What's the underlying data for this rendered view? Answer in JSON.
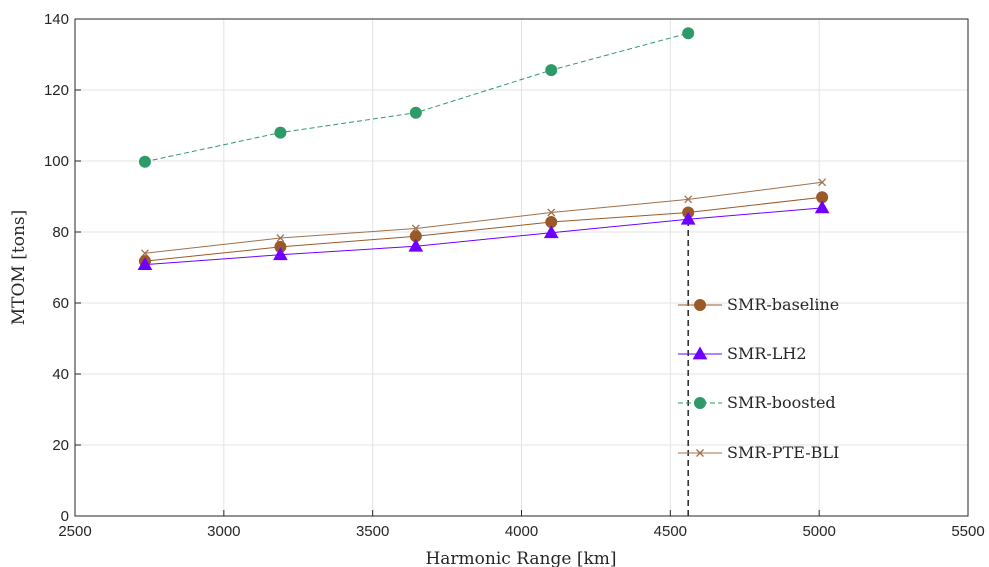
{
  "chart_data": {
    "type": "line",
    "title": "",
    "xlabel": "Harmonic Range [km]",
    "ylabel": "MTOM [tons]",
    "xlim": [
      2500,
      5500
    ],
    "ylim": [
      0,
      140
    ],
    "xticks": [
      2500,
      3000,
      3500,
      4000,
      4500,
      5000,
      5500
    ],
    "yticks": [
      0,
      20,
      40,
      60,
      80,
      100,
      120,
      140
    ],
    "grid": true,
    "legend_position": "right-center",
    "vertical_reference_line": {
      "x": 4560,
      "y_from": 0,
      "y_to": 85.5,
      "style": "dashed",
      "color": "#262626"
    },
    "series": [
      {
        "name": "SMR-baseline",
        "color": "#9a5a28",
        "marker": "circle",
        "line_style": "solid",
        "x": [
          2735,
          3190,
          3645,
          4100,
          4560,
          5010
        ],
        "y": [
          71.8,
          75.8,
          78.8,
          82.8,
          85.5,
          89.8
        ]
      },
      {
        "name": "SMR-LH2",
        "color": "#6f00ff",
        "marker": "triangle",
        "line_style": "solid",
        "x": [
          2735,
          3190,
          3645,
          4100,
          4560,
          5010
        ],
        "y": [
          70.8,
          73.6,
          76.0,
          79.8,
          83.6,
          86.8
        ]
      },
      {
        "name": "SMR-boosted",
        "color": "#2e9a68",
        "marker": "circle",
        "line_style": "dashed",
        "x": [
          2735,
          3190,
          3645,
          4100,
          4560
        ],
        "y": [
          99.8,
          108.0,
          113.6,
          125.6,
          136.0
        ]
      },
      {
        "name": "SMR-PTE-BLI",
        "color": "#a0704a",
        "marker": "x",
        "line_style": "solid",
        "x": [
          2735,
          3190,
          3645,
          4100,
          4560,
          5010
        ],
        "y": [
          74.0,
          78.3,
          81.0,
          85.5,
          89.2,
          94.0
        ]
      }
    ]
  }
}
